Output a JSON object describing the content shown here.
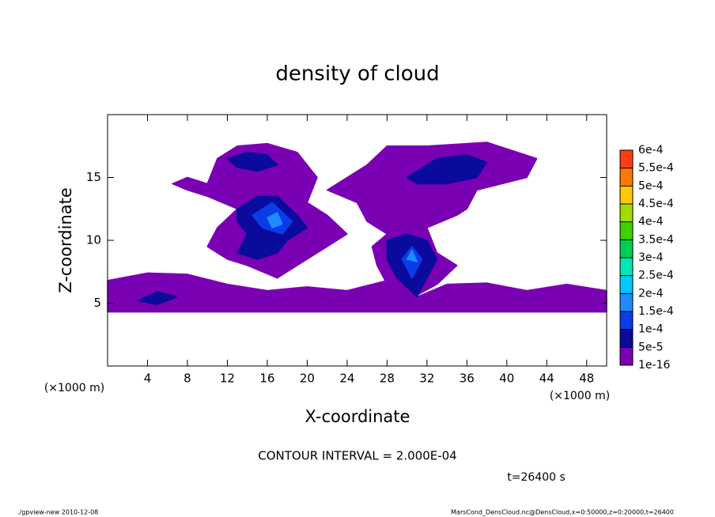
{
  "chart_data": {
    "type": "contour",
    "title": "density of cloud",
    "x_label": "X-coordinate",
    "y_label": "Z-coordinate",
    "x_unit_left": "(×1000 m)",
    "x_unit_right": "(×1000 m)",
    "contour_interval": "CONTOUR INTERVAL = 2.000E-04",
    "time_label": "t=26400 s",
    "footer_left": "./gpview-new   2010-12-08",
    "footer_right": "MarsCond_DensCloud.nc@DensCloud,x=0:50000,z=0:20000,t=26400",
    "xlim": [
      0,
      50
    ],
    "ylim": [
      0,
      20
    ],
    "xticks": [
      4,
      8,
      12,
      16,
      20,
      24,
      28,
      32,
      36,
      40,
      44,
      48
    ],
    "yticks": [
      5,
      10,
      15
    ],
    "colorbar": {
      "ticks": [
        {
          "value": 1e-16,
          "label": "1e-16"
        },
        {
          "value": 5e-05,
          "label": "5e-5"
        },
        {
          "value": 0.0001,
          "label": "1e-4"
        },
        {
          "value": 0.00015,
          "label": "1.5e-4"
        },
        {
          "value": 0.0002,
          "label": "2e-4"
        },
        {
          "value": 0.00025,
          "label": "2.5e-4"
        },
        {
          "value": 0.0003,
          "label": "3e-4"
        },
        {
          "value": 0.00035,
          "label": "3.5e-4"
        },
        {
          "value": 0.0004,
          "label": "4e-4"
        },
        {
          "value": 0.00045,
          "label": "4.5e-4"
        },
        {
          "value": 0.0005,
          "label": "5e-4"
        },
        {
          "value": 0.00055,
          "label": "5.5e-4"
        },
        {
          "value": 0.0006,
          "label": "6e-4"
        }
      ],
      "colors": [
        "#7a00b4",
        "#0a0a9c",
        "#0a3ce8",
        "#1e8cff",
        "#00c8ff",
        "#00e6b4",
        "#00d050",
        "#3cd200",
        "#a0dc00",
        "#ffc800",
        "#ff7800",
        "#ff3c14",
        "#ff8c8c"
      ]
    },
    "contours": [
      {
        "level": 1e-16,
        "points": [
          [
            0,
            4.3
          ],
          [
            50,
            4.3
          ],
          [
            50,
            6
          ],
          [
            46,
            6.5
          ],
          [
            42,
            6
          ],
          [
            38,
            6.6
          ],
          [
            34,
            6.5
          ],
          [
            31,
            5.5
          ],
          [
            28,
            6.8
          ],
          [
            24,
            6
          ],
          [
            20,
            6.3
          ],
          [
            16,
            6
          ],
          [
            12,
            6.5
          ],
          [
            8,
            7.3
          ],
          [
            4,
            7.4
          ],
          [
            0,
            6.8
          ]
        ]
      },
      {
        "level": 1e-16,
        "points": [
          [
            10,
            14.5
          ],
          [
            11,
            16.5
          ],
          [
            13,
            17.5
          ],
          [
            16,
            17.7
          ],
          [
            19,
            17
          ],
          [
            21,
            15
          ],
          [
            20,
            13
          ],
          [
            22,
            12
          ],
          [
            24,
            10.5
          ],
          [
            22,
            9.5
          ],
          [
            20,
            8.5
          ],
          [
            17,
            7
          ],
          [
            14,
            8
          ],
          [
            12,
            8.5
          ],
          [
            10,
            9.5
          ],
          [
            11,
            11
          ],
          [
            13,
            12.5
          ],
          [
            10,
            13.5
          ],
          [
            8,
            14
          ],
          [
            6.5,
            14.5
          ],
          [
            8,
            15
          ]
        ]
      },
      {
        "level": 1e-16,
        "points": [
          [
            26,
            16
          ],
          [
            28,
            17.5
          ],
          [
            32,
            17.5
          ],
          [
            38,
            17.8
          ],
          [
            43,
            16.5
          ],
          [
            42,
            15
          ],
          [
            37,
            14
          ],
          [
            36,
            12.5
          ],
          [
            35,
            12
          ],
          [
            32,
            11
          ],
          [
            33,
            9
          ],
          [
            35,
            8
          ],
          [
            33,
            6.5
          ],
          [
            30,
            5.2
          ],
          [
            28,
            6.5
          ],
          [
            27,
            8
          ],
          [
            26.5,
            9.5
          ],
          [
            28,
            10.5
          ],
          [
            26,
            11.5
          ],
          [
            25,
            13
          ],
          [
            22,
            14
          ],
          [
            24,
            15
          ]
        ]
      },
      {
        "level": 5e-05,
        "points": [
          [
            13,
            12.5
          ],
          [
            15,
            13.5
          ],
          [
            17,
            13.5
          ],
          [
            19,
            12
          ],
          [
            20,
            11
          ],
          [
            18,
            10
          ],
          [
            17,
            9
          ],
          [
            15,
            8.5
          ],
          [
            13,
            9
          ],
          [
            14,
            10.5
          ],
          [
            13,
            11.5
          ]
        ]
      },
      {
        "level": 5e-05,
        "points": [
          [
            12,
            16.5
          ],
          [
            14,
            17
          ],
          [
            16,
            16.8
          ],
          [
            17,
            16
          ],
          [
            15,
            15.5
          ],
          [
            13,
            15.8
          ]
        ]
      },
      {
        "level": 5e-05,
        "points": [
          [
            28,
            10
          ],
          [
            30,
            10.5
          ],
          [
            32,
            10
          ],
          [
            33,
            8.5
          ],
          [
            32,
            7
          ],
          [
            31,
            5.5
          ],
          [
            29,
            7
          ],
          [
            28,
            8.5
          ]
        ]
      },
      {
        "level": 5e-05,
        "points": [
          [
            30,
            15
          ],
          [
            33,
            16.5
          ],
          [
            36,
            16.8
          ],
          [
            38,
            16.2
          ],
          [
            37,
            15
          ],
          [
            34,
            14.5
          ],
          [
            31,
            14.5
          ]
        ]
      },
      {
        "level": 5e-05,
        "points": [
          [
            3,
            5.2
          ],
          [
            5,
            5.9
          ],
          [
            7,
            5.5
          ],
          [
            5,
            4.9
          ]
        ]
      },
      {
        "level": 0.0001,
        "points": [
          [
            14.5,
            12
          ],
          [
            16.5,
            13
          ],
          [
            18.5,
            11.5
          ],
          [
            17.5,
            10.5
          ],
          [
            15.5,
            11
          ]
        ]
      },
      {
        "level": 0.0001,
        "points": [
          [
            29.5,
            8.5
          ],
          [
            30.5,
            9.5
          ],
          [
            31.5,
            8.5
          ],
          [
            30.5,
            7
          ]
        ]
      },
      {
        "level": 0.00015,
        "points": [
          [
            16,
            11.8
          ],
          [
            17,
            12.2
          ],
          [
            17.5,
            11.3
          ],
          [
            16.5,
            11
          ]
        ]
      },
      {
        "level": 0.00015,
        "points": [
          [
            30,
            8.5
          ],
          [
            30.5,
            9.2
          ],
          [
            31,
            8.3
          ]
        ]
      }
    ]
  }
}
